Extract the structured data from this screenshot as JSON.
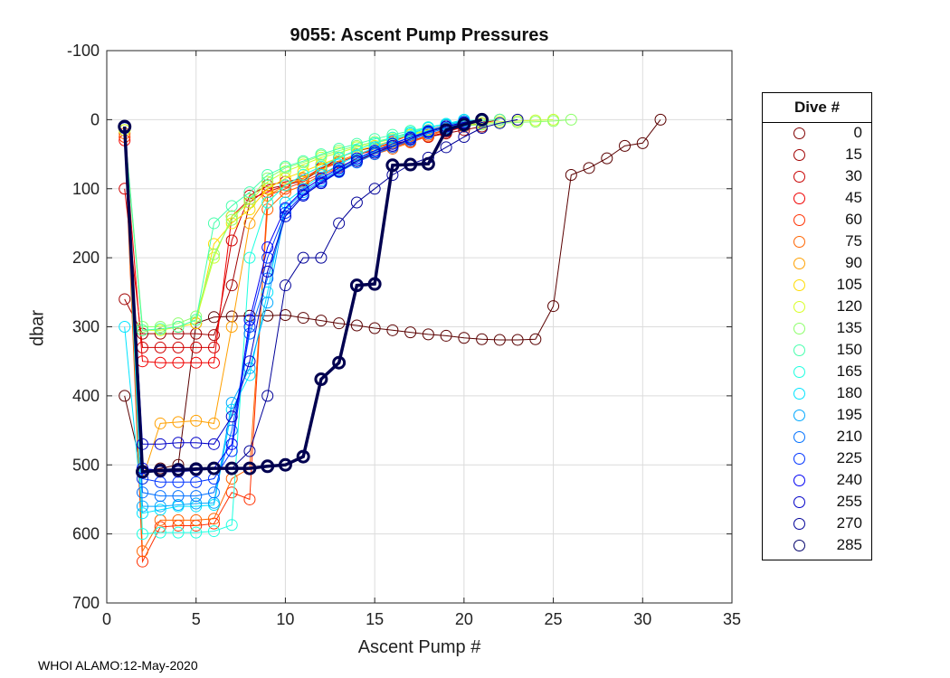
{
  "chart_data": {
    "type": "line",
    "title": "9055: Ascent Pump Pressures",
    "xlabel": "Ascent Pump #",
    "ylabel": "dbar",
    "xlim": [
      0,
      35
    ],
    "ylim": [
      -100,
      700
    ],
    "y_reversed": true,
    "xticks": [
      0,
      5,
      10,
      15,
      20,
      25,
      30,
      35
    ],
    "yticks": [
      -100,
      0,
      100,
      200,
      300,
      400,
      500,
      600,
      700
    ],
    "grid": true,
    "marker": "open-circle",
    "legend_title": "Dive #",
    "legend_position": "outside-right",
    "legend": [
      {
        "label": "0",
        "color": "#800000"
      },
      {
        "label": "15",
        "color": "#a00000"
      },
      {
        "label": "30",
        "color": "#c80000"
      },
      {
        "label": "45",
        "color": "#f00000"
      },
      {
        "label": "60",
        "color": "#ff3000"
      },
      {
        "label": "75",
        "color": "#ff6400"
      },
      {
        "label": "90",
        "color": "#ffa000"
      },
      {
        "label": "105",
        "color": "#ffdc00"
      },
      {
        "label": "120",
        "color": "#d8ff24"
      },
      {
        "label": "135",
        "color": "#8cff6a"
      },
      {
        "label": "150",
        "color": "#46ffac"
      },
      {
        "label": "165",
        "color": "#1cffe0"
      },
      {
        "label": "180",
        "color": "#00e4ff"
      },
      {
        "label": "195",
        "color": "#00a8ff"
      },
      {
        "label": "210",
        "color": "#0070ff"
      },
      {
        "label": "225",
        "color": "#0034ff"
      },
      {
        "label": "240",
        "color": "#0000f4"
      },
      {
        "label": "255",
        "color": "#0000c8"
      },
      {
        "label": "270",
        "color": "#000098"
      },
      {
        "label": "285",
        "color": "#00006a"
      }
    ],
    "series": [
      {
        "name": "0",
        "color": "#5a0000",
        "x": [
          1,
          2,
          3,
          4,
          5,
          6,
          7,
          8,
          9,
          10,
          11,
          12,
          13,
          14,
          15,
          16,
          17,
          18,
          19,
          20,
          21,
          22,
          23,
          24,
          25,
          26,
          27,
          28,
          29,
          30,
          31
        ],
        "y": [
          400,
          510,
          505,
          500,
          295,
          286,
          285,
          284,
          284,
          283,
          287,
          291,
          295,
          298,
          302,
          305,
          308,
          311,
          313,
          316,
          318,
          319,
          319,
          318,
          270,
          80,
          70,
          56,
          38,
          34,
          0
        ]
      },
      {
        "name": "15",
        "color": "#a00000",
        "x": [
          1,
          2,
          3,
          4,
          5,
          6,
          7,
          8,
          9,
          10,
          11,
          12,
          13,
          14,
          15,
          16,
          17,
          18,
          19,
          20,
          21
        ],
        "y": [
          260,
          310,
          310,
          310,
          310,
          312,
          240,
          120,
          100,
          95,
          88,
          72,
          55,
          45,
          40,
          35,
          30,
          25,
          20,
          15,
          10
        ]
      },
      {
        "name": "30",
        "color": "#d00000",
        "x": [
          1,
          2,
          3,
          4,
          5,
          6,
          7,
          8,
          9,
          10,
          11,
          12,
          13,
          14,
          15,
          16,
          17,
          18,
          19,
          20,
          21,
          22
        ],
        "y": [
          100,
          330,
          330,
          330,
          330,
          330,
          175,
          110,
          95,
          90,
          85,
          70,
          60,
          50,
          45,
          38,
          30,
          25,
          18,
          10,
          5,
          0
        ]
      },
      {
        "name": "45",
        "color": "#f00000",
        "x": [
          1,
          2,
          3,
          4,
          5,
          6,
          7,
          8,
          9,
          10,
          11,
          12,
          13,
          14,
          15,
          16,
          17,
          18,
          19,
          20
        ],
        "y": [
          30,
          350,
          352,
          352,
          352,
          352,
          140,
          115,
          105,
          95,
          85,
          72,
          62,
          52,
          42,
          32,
          22,
          15,
          8,
          2
        ]
      },
      {
        "name": "60",
        "color": "#ff3000",
        "x": [
          1,
          2,
          3,
          4,
          5,
          6,
          7,
          8,
          9,
          10,
          11,
          12,
          13,
          14,
          15,
          16,
          17,
          18,
          19,
          20,
          21
        ],
        "y": [
          25,
          640,
          590,
          588,
          588,
          585,
          540,
          550,
          110,
          100,
          90,
          78,
          68,
          58,
          48,
          40,
          32,
          22,
          14,
          6,
          0
        ]
      },
      {
        "name": "75",
        "color": "#ff6400",
        "x": [
          1,
          2,
          3,
          4,
          5,
          6,
          7,
          8,
          9,
          10,
          11,
          12,
          13,
          14,
          15,
          16,
          17,
          18,
          19,
          20,
          21
        ],
        "y": [
          20,
          625,
          580,
          580,
          580,
          578,
          520,
          505,
          130,
          105,
          95,
          80,
          70,
          60,
          50,
          42,
          33,
          24,
          15,
          8,
          0
        ]
      },
      {
        "name": "90",
        "color": "#ffa000",
        "x": [
          1,
          2,
          3,
          4,
          5,
          6,
          7,
          8,
          9,
          10,
          11,
          12,
          13,
          14,
          15,
          16,
          17,
          18,
          19,
          20,
          21
        ],
        "y": [
          15,
          520,
          440,
          438,
          436,
          440,
          300,
          150,
          110,
          95,
          85,
          72,
          60,
          50,
          42,
          34,
          26,
          18,
          10,
          4,
          0
        ]
      },
      {
        "name": "105",
        "color": "#ffdc00",
        "x": [
          1,
          2,
          3,
          4,
          5,
          6,
          7,
          8,
          9,
          10,
          11,
          12,
          13,
          14,
          15,
          16,
          17,
          18,
          19,
          20,
          21,
          22
        ],
        "y": [
          15,
          305,
          305,
          300,
          295,
          180,
          150,
          130,
          100,
          85,
          75,
          65,
          55,
          45,
          38,
          30,
          22,
          15,
          10,
          5,
          2,
          0
        ]
      },
      {
        "name": "120",
        "color": "#c8ff30",
        "x": [
          1,
          2,
          3,
          4,
          5,
          6,
          7,
          8,
          9,
          10,
          11,
          12,
          13,
          14,
          15,
          16,
          17,
          18,
          19,
          20,
          21,
          22,
          23,
          24,
          25
        ],
        "y": [
          15,
          305,
          305,
          300,
          290,
          200,
          140,
          120,
          90,
          75,
          65,
          55,
          48,
          40,
          34,
          28,
          22,
          16,
          12,
          8,
          5,
          3,
          2,
          1,
          0
        ]
      },
      {
        "name": "135",
        "color": "#8cff6a",
        "x": [
          1,
          2,
          3,
          4,
          5,
          6,
          7,
          8,
          9,
          10,
          11,
          12,
          13,
          14,
          15,
          16,
          17,
          18,
          19,
          20,
          21,
          22,
          23,
          24,
          25,
          26
        ],
        "y": [
          12,
          300,
          300,
          295,
          285,
          195,
          145,
          115,
          85,
          70,
          62,
          52,
          45,
          38,
          32,
          26,
          20,
          15,
          12,
          9,
          7,
          5,
          4,
          3,
          2,
          0
        ]
      },
      {
        "name": "150",
        "color": "#46ffac",
        "x": [
          1,
          2,
          3,
          4,
          5,
          6,
          7,
          8,
          9,
          10,
          11,
          12,
          13,
          14,
          15,
          16,
          17,
          18,
          19,
          20,
          21,
          22
        ],
        "y": [
          12,
          305,
          303,
          300,
          290,
          150,
          125,
          105,
          80,
          68,
          60,
          50,
          42,
          35,
          28,
          22,
          16,
          11,
          7,
          4,
          2,
          0
        ]
      },
      {
        "name": "165",
        "color": "#1cffe0",
        "x": [
          1,
          2,
          3,
          4,
          5,
          6,
          7,
          8,
          9,
          10,
          11,
          12,
          13,
          14,
          15,
          16,
          17,
          18,
          19,
          20,
          21
        ],
        "y": [
          12,
          600,
          598,
          598,
          598,
          596,
          587,
          200,
          120,
          95,
          80,
          68,
          55,
          44,
          34,
          26,
          18,
          11,
          6,
          2,
          0
        ]
      },
      {
        "name": "180",
        "color": "#00e4ff",
        "x": [
          1,
          2,
          3,
          4,
          5,
          6,
          7,
          8,
          9,
          10,
          11,
          12,
          13,
          14,
          15,
          16,
          17,
          18,
          19,
          20
        ],
        "y": [
          300,
          570,
          565,
          560,
          560,
          558,
          420,
          370,
          250,
          120,
          100,
          80,
          65,
          52,
          40,
          30,
          20,
          12,
          6,
          0
        ]
      },
      {
        "name": "195",
        "color": "#00a8ff",
        "x": [
          1,
          2,
          3,
          4,
          5,
          6,
          7,
          8,
          9,
          10,
          11,
          12,
          13,
          14,
          15,
          16,
          17,
          18,
          19,
          20
        ],
        "y": [
          12,
          560,
          560,
          558,
          556,
          555,
          410,
          360,
          265,
          130,
          105,
          88,
          72,
          58,
          46,
          35,
          25,
          16,
          8,
          2
        ]
      },
      {
        "name": "210",
        "color": "#0070ff",
        "x": [
          1,
          2,
          3,
          4,
          5,
          6,
          7,
          8,
          9,
          10,
          11,
          12,
          13,
          14,
          15,
          16,
          17,
          18,
          19,
          20,
          21
        ],
        "y": [
          12,
          540,
          545,
          545,
          545,
          540,
          450,
          310,
          230,
          140,
          110,
          92,
          76,
          62,
          50,
          40,
          30,
          20,
          12,
          5,
          0
        ]
      },
      {
        "name": "225",
        "color": "#0034ff",
        "x": [
          1,
          2,
          3,
          4,
          5,
          6,
          7,
          8,
          9,
          10,
          11,
          12,
          13,
          14,
          15,
          16,
          17,
          18,
          19,
          20,
          21
        ],
        "y": [
          12,
          520,
          525,
          525,
          525,
          520,
          480,
          300,
          200,
          135,
          108,
          90,
          74,
          60,
          48,
          38,
          28,
          18,
          10,
          4,
          0
        ]
      },
      {
        "name": "240",
        "color": "#0000f4",
        "x": [
          1,
          2,
          3,
          4,
          5,
          6,
          7,
          8,
          9,
          10,
          11,
          12,
          13,
          14,
          15,
          16,
          17,
          18,
          19,
          20,
          21
        ],
        "y": [
          12,
          505,
          508,
          508,
          506,
          505,
          470,
          290,
          185,
          128,
          102,
          85,
          70,
          56,
          45,
          35,
          26,
          17,
          10,
          4,
          0
        ]
      },
      {
        "name": "255",
        "color": "#0000c8",
        "x": [
          1,
          2,
          3,
          4,
          5,
          6,
          7,
          8,
          9,
          10,
          11,
          12,
          13,
          14,
          15,
          16,
          17,
          18,
          19,
          20,
          21
        ],
        "y": [
          12,
          470,
          470,
          468,
          468,
          470,
          430,
          350,
          220,
          140,
          110,
          92,
          75,
          60,
          48,
          38,
          28,
          18,
          10,
          4,
          0
        ]
      },
      {
        "name": "270",
        "color": "#000098",
        "x": [
          1,
          2,
          3,
          4,
          5,
          6,
          7,
          8,
          9,
          10,
          11,
          12,
          13,
          14,
          15,
          16,
          17,
          18,
          19,
          20,
          21,
          22,
          23
        ],
        "y": [
          12,
          510,
          510,
          510,
          508,
          506,
          505,
          480,
          400,
          240,
          200,
          200,
          150,
          120,
          100,
          80,
          65,
          55,
          40,
          25,
          12,
          5,
          0
        ]
      },
      {
        "name": "285",
        "color": "#000050",
        "x": [
          1,
          2,
          3,
          4,
          5,
          6,
          7,
          8,
          9,
          10,
          11,
          12,
          13,
          14,
          15,
          16,
          17,
          18,
          19,
          20,
          21
        ],
        "y": [
          10,
          510,
          508,
          507,
          506,
          505,
          505,
          505,
          502,
          500,
          488,
          376,
          352,
          240,
          238,
          66,
          65,
          64,
          15,
          7,
          0
        ]
      }
    ]
  },
  "footer": "WHOI ALAMO:12-May-2020"
}
